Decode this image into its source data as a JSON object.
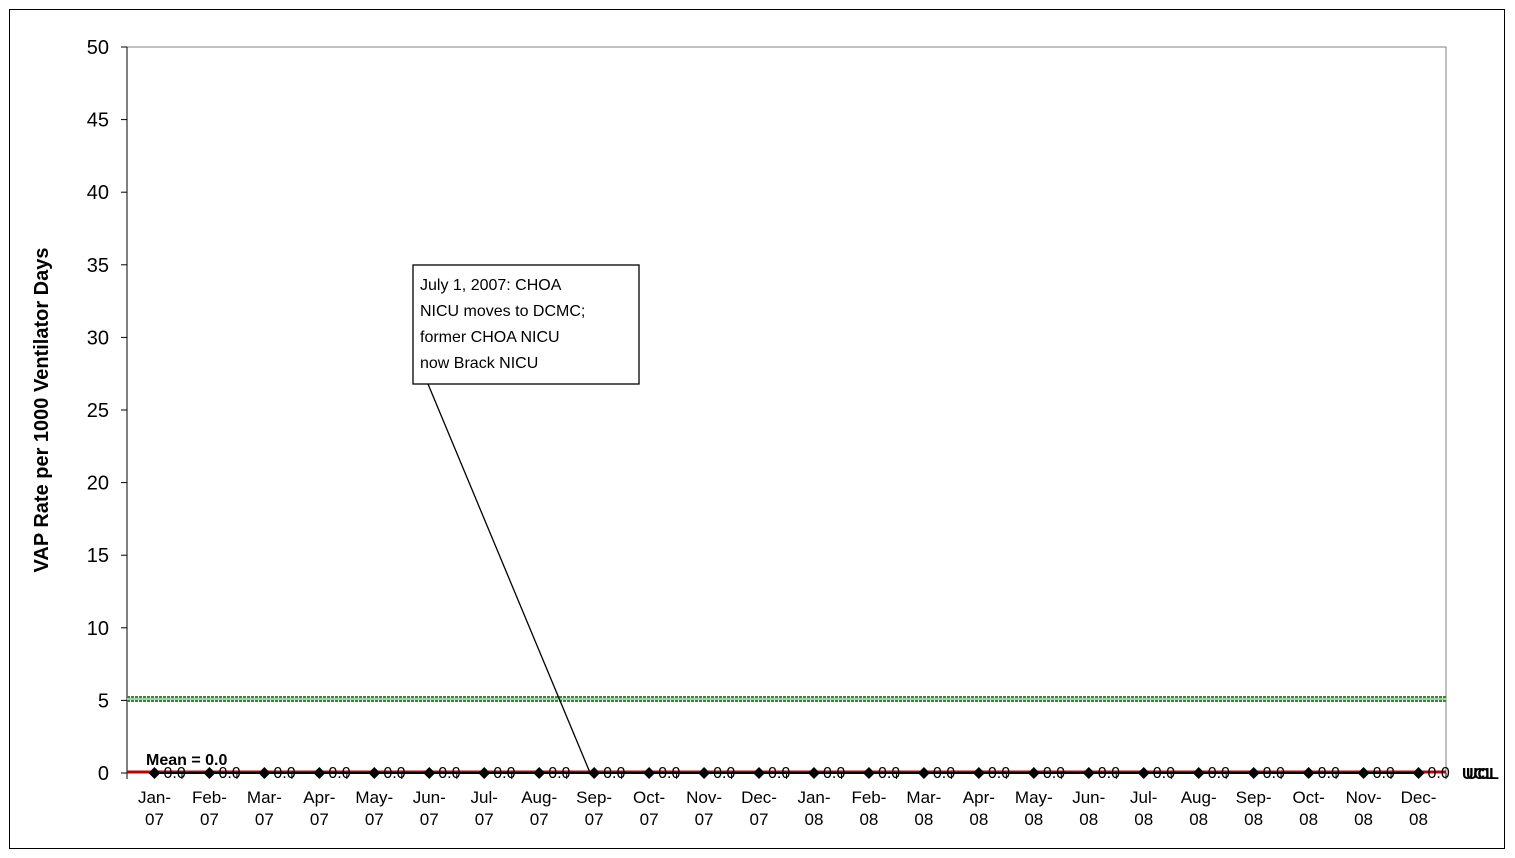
{
  "chart_data": {
    "type": "line",
    "title": "",
    "xlabel": "",
    "ylabel": "VAP Rate per 1000 Ventilator Days",
    "ylim": [
      0,
      50
    ],
    "yticks": [
      0,
      5,
      10,
      15,
      20,
      25,
      30,
      35,
      40,
      45,
      50
    ],
    "categories": [
      [
        "Jan-",
        "07"
      ],
      [
        "Feb-",
        "07"
      ],
      [
        "Mar-",
        "07"
      ],
      [
        "Apr-",
        "07"
      ],
      [
        "May-",
        "07"
      ],
      [
        "Jun-",
        "07"
      ],
      [
        "Jul-",
        "07"
      ],
      [
        "Aug-",
        "07"
      ],
      [
        "Sep-",
        "07"
      ],
      [
        "Oct-",
        "07"
      ],
      [
        "Nov-",
        "07"
      ],
      [
        "Dec-",
        "07"
      ],
      [
        "Jan-",
        "08"
      ],
      [
        "Feb-",
        "08"
      ],
      [
        "Mar-",
        "08"
      ],
      [
        "Apr-",
        "08"
      ],
      [
        "May-",
        "08"
      ],
      [
        "Jun-",
        "08"
      ],
      [
        "Jul-",
        "08"
      ],
      [
        "Aug-",
        "08"
      ],
      [
        "Sep-",
        "08"
      ],
      [
        "Oct-",
        "08"
      ],
      [
        "Nov-",
        "08"
      ],
      [
        "Dec-",
        "08"
      ]
    ],
    "series": [
      {
        "name": "",
        "values": [
          0,
          0,
          0,
          0,
          0,
          0,
          0,
          0,
          0,
          0,
          0,
          0,
          0,
          0,
          0,
          0,
          0,
          0,
          0,
          0,
          0,
          0,
          0,
          0
        ],
        "data_labels": [
          "0.0",
          "0.0",
          "0.0",
          "0.0",
          "0.0",
          "0.0",
          "0.0",
          "0.0",
          "0.0",
          "0.0",
          "0.0",
          "0.0",
          "0.0",
          "0.0",
          "0.0",
          "0.0",
          "0.0",
          "0.0",
          "0.0",
          "0.0",
          "0.0",
          "0.0",
          "0.0",
          "0.0"
        ],
        "color": "#000000"
      }
    ],
    "reference_lines": [
      {
        "label": "Mean =  0.0",
        "value": 0.0,
        "color": "#c00000"
      },
      {
        "label": "UCL",
        "value": 0.0,
        "color": "#c00000"
      },
      {
        "label": "",
        "value": 5.1,
        "color": "#2e8b2e"
      }
    ],
    "annotation": {
      "lines": [
        "July 1, 2007:  CHOA",
        "NICU moves to DCMC;",
        "former CHOA NICU",
        "now Brack NICU"
      ],
      "points_to_category": 8,
      "points_to_value": 0
    },
    "grid": false,
    "legend": "none"
  }
}
